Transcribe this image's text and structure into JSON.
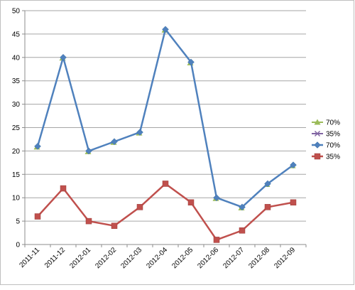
{
  "chart_data": {
    "type": "line",
    "categories": [
      "2011-11",
      "2011-12",
      "2012-01",
      "2012-02",
      "2012-03",
      "2012-04",
      "2012-05",
      "2012-06",
      "2012-07",
      "2012-08",
      "2012-09"
    ],
    "ylim": [
      0,
      50
    ],
    "yticks": [
      0,
      5,
      10,
      15,
      20,
      25,
      30,
      35,
      40,
      45,
      50
    ],
    "grid": true,
    "legend_position": "right",
    "series": [
      {
        "name": "70%",
        "marker": "triangle",
        "color": "#9bbb59",
        "values": [
          21,
          40,
          20,
          22,
          24,
          46,
          39,
          10,
          8,
          13,
          17
        ],
        "line": false
      },
      {
        "name": "35%",
        "marker": "x",
        "color": "#8064a2",
        "values": [
          6,
          12,
          5,
          4,
          8,
          13,
          9,
          1,
          3,
          8,
          9
        ],
        "line": false
      },
      {
        "name": "70%",
        "marker": "diamond",
        "color": "#4f81bd",
        "values": [
          21,
          40,
          20,
          22,
          24,
          46,
          39,
          10,
          8,
          13,
          17
        ],
        "line": true
      },
      {
        "name": "35%",
        "marker": "square",
        "color": "#c0504d",
        "values": [
          6,
          12,
          5,
          4,
          8,
          13,
          9,
          1,
          3,
          8,
          9
        ],
        "line": true
      }
    ]
  }
}
